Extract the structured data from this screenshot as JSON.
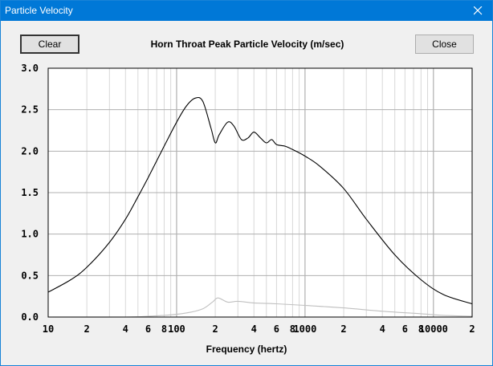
{
  "window": {
    "title": "Particle Velocity"
  },
  "toolbar": {
    "clear_label": "Clear",
    "close_label": "Close"
  },
  "chart_data": {
    "type": "line",
    "title": "Horn Throat Peak Particle Velocity (m/sec)",
    "xlabel": "Frequency (hertz)",
    "ylabel": "",
    "xscale": "log",
    "xlim": [
      10,
      20000
    ],
    "ylim": [
      0,
      3.0
    ],
    "grid": true,
    "yticks": [
      "0.0",
      "0.5",
      "1.0",
      "1.5",
      "2.0",
      "2.5",
      "3.0"
    ],
    "xticks": [
      {
        "f": 10,
        "label": "10"
      },
      {
        "f": 20,
        "label": "2"
      },
      {
        "f": 40,
        "label": "4"
      },
      {
        "f": 60,
        "label": "6"
      },
      {
        "f": 80,
        "label": "8"
      },
      {
        "f": 100,
        "label": "100"
      },
      {
        "f": 200,
        "label": "2"
      },
      {
        "f": 400,
        "label": "4"
      },
      {
        "f": 600,
        "label": "6"
      },
      {
        "f": 800,
        "label": "8"
      },
      {
        "f": 1000,
        "label": "1000"
      },
      {
        "f": 2000,
        "label": "2"
      },
      {
        "f": 4000,
        "label": "4"
      },
      {
        "f": 6000,
        "label": "6"
      },
      {
        "f": 8000,
        "label": "8"
      },
      {
        "f": 10000,
        "label": "10000"
      },
      {
        "f": 20000,
        "label": "2"
      }
    ],
    "series": [
      {
        "color": "#000000",
        "x": [
          10,
          15,
          20,
          30,
          40,
          50,
          60,
          80,
          100,
          120,
          140,
          160,
          185,
          200,
          215,
          250,
          280,
          320,
          360,
          400,
          450,
          500,
          550,
          600,
          700,
          800,
          1000,
          1300,
          2000,
          3000,
          5000,
          8000,
          12000,
          20000
        ],
        "y": [
          0.3,
          0.45,
          0.6,
          0.9,
          1.18,
          1.45,
          1.68,
          2.06,
          2.35,
          2.55,
          2.64,
          2.6,
          2.28,
          2.1,
          2.2,
          2.35,
          2.3,
          2.14,
          2.16,
          2.23,
          2.16,
          2.1,
          2.14,
          2.08,
          2.06,
          2.02,
          1.94,
          1.82,
          1.55,
          1.18,
          0.75,
          0.45,
          0.27,
          0.16
        ]
      },
      {
        "color": "#c0c0c0",
        "x": [
          10,
          40,
          80,
          120,
          160,
          190,
          210,
          250,
          300,
          400,
          600,
          1000,
          2000,
          4000,
          8000,
          12000,
          20000
        ],
        "y": [
          0.0,
          0.0,
          0.02,
          0.05,
          0.1,
          0.18,
          0.23,
          0.18,
          0.19,
          0.17,
          0.16,
          0.14,
          0.11,
          0.07,
          0.04,
          0.02,
          0.01
        ]
      }
    ]
  }
}
